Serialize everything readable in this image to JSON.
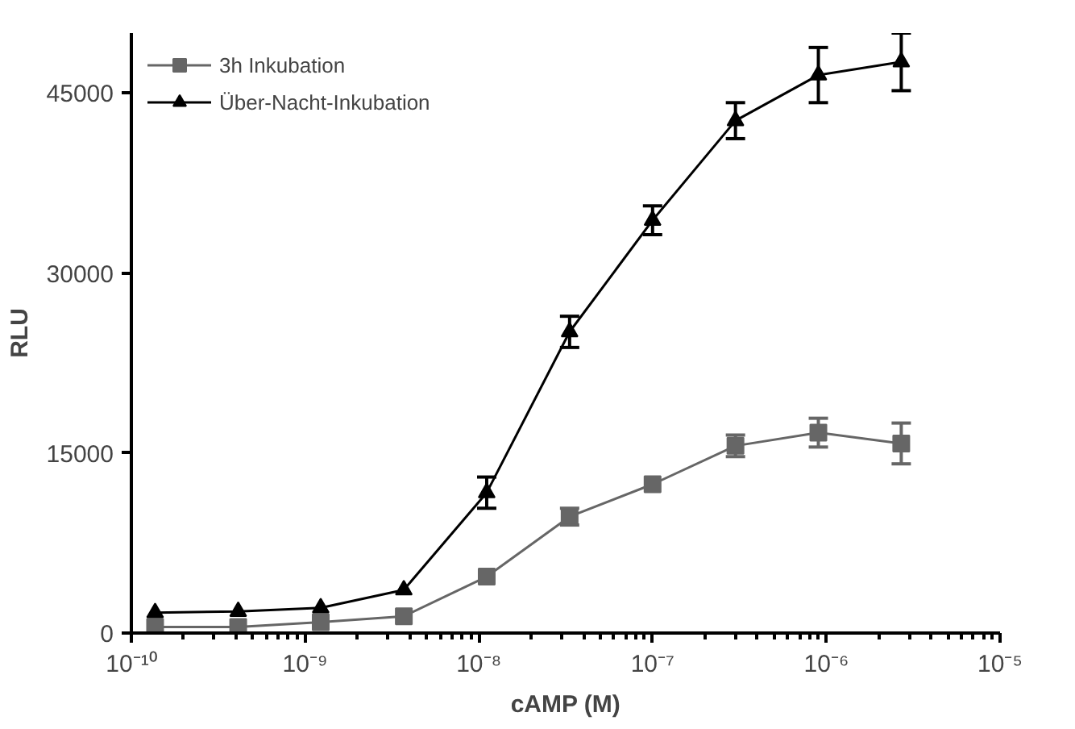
{
  "chart_data": {
    "type": "line",
    "xlabel": "cAMP (M)",
    "ylabel": "RLU",
    "log": "x",
    "x": [
      1.37e-10,
      4.12e-10,
      1.23e-09,
      3.7e-09,
      1.11e-08,
      3.33e-08,
      1e-07,
      3e-07,
      9e-07,
      2.7e-06
    ],
    "series": [
      {
        "name": "3h Inkubation",
        "color": "#666666",
        "marker": "square",
        "values": [
          500,
          500,
          900,
          1400,
          4700,
          9700,
          12400,
          15600,
          16700,
          15800
        ],
        "errors": [
          null,
          null,
          null,
          null,
          null,
          700,
          null,
          900,
          1200,
          1700
        ]
      },
      {
        "name": "Über-Nacht-Inkubation",
        "color": "#000000",
        "marker": "triangle",
        "values": [
          1700,
          1800,
          2100,
          3600,
          11700,
          25100,
          34400,
          42700,
          46500,
          47600
        ],
        "errors": [
          null,
          null,
          null,
          null,
          1300,
          1300,
          1200,
          1500,
          2300,
          2400
        ]
      }
    ],
    "xlim": [
      1e-10,
      1e-05
    ],
    "xticks": [
      {
        "value": 1e-10,
        "label": "10⁻¹⁰"
      },
      {
        "value": 1e-09,
        "label": "10⁻⁹"
      },
      {
        "value": 1e-08,
        "label": "10⁻⁸"
      },
      {
        "value": 1e-07,
        "label": "10⁻⁷"
      },
      {
        "value": 1e-06,
        "label": "10⁻⁶"
      },
      {
        "value": 1e-05,
        "label": "10⁻⁵"
      }
    ],
    "ylim": [
      0,
      50000
    ],
    "yticks": [
      0,
      15000,
      30000,
      45000
    ],
    "grid": false,
    "legend": "top left",
    "line_style": "solid"
  }
}
